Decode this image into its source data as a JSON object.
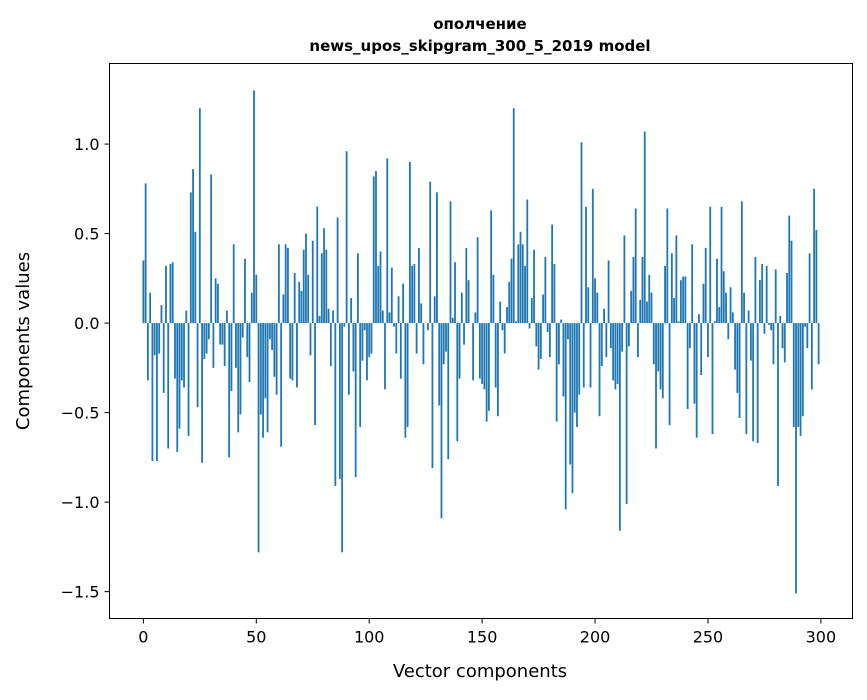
{
  "chart_data": {
    "type": "bar",
    "title": "ополчение",
    "subtitle": "news_upos_skipgram_300_5_2019 model",
    "xlabel": "Vector components",
    "ylabel": "Components values",
    "xlim": [
      -15,
      314
    ],
    "ylim": [
      -1.65,
      1.45
    ],
    "xticks": [
      0,
      50,
      100,
      150,
      200,
      250,
      300
    ],
    "xtick_labels": [
      "0",
      "50",
      "100",
      "150",
      "200",
      "250",
      "300"
    ],
    "yticks": [
      -1.5,
      -1.0,
      -0.5,
      0.0,
      0.5,
      1.0
    ],
    "ytick_labels": [
      "−1.5",
      "−1.0",
      "−0.5",
      "0.0",
      "0.5",
      "1.0"
    ],
    "grid": false,
    "color": "#1f77b4",
    "values": [
      0.35,
      0.78,
      -0.32,
      0.17,
      -0.77,
      -0.18,
      -0.77,
      -0.17,
      0.1,
      -0.39,
      0.32,
      -0.7,
      0.33,
      0.34,
      -0.31,
      -0.72,
      -0.59,
      -0.32,
      -0.36,
      0.07,
      -0.63,
      0.73,
      0.86,
      0.51,
      -0.47,
      1.2,
      -0.78,
      -0.2,
      -0.17,
      -0.09,
      0.83,
      -0.25,
      0.25,
      0.22,
      -0.12,
      -0.12,
      -0.24,
      0.07,
      -0.75,
      -0.38,
      0.44,
      -0.25,
      -0.61,
      -0.51,
      -0.08,
      0.36,
      -0.19,
      -0.33,
      0.17,
      1.3,
      0.27,
      -1.28,
      -0.51,
      -0.64,
      -0.42,
      -0.61,
      -0.09,
      -0.15,
      -0.3,
      -0.4,
      0.44,
      -0.69,
      0.16,
      0.44,
      0.42,
      -0.31,
      -0.32,
      0.28,
      -0.36,
      0.23,
      0.18,
      0.41,
      0.5,
      0.27,
      -0.18,
      0.46,
      -0.57,
      0.65,
      0.04,
      0.39,
      0.53,
      0.41,
      0.08,
      -0.24,
      0.07,
      -0.91,
      0.59,
      -0.87,
      -1.28,
      -0.02,
      0.96,
      -0.4,
      0.14,
      -0.27,
      -0.86,
      0.39,
      -0.58,
      -0.21,
      -0.04,
      -0.32,
      -0.19,
      -0.17,
      0.82,
      0.85,
      0.32,
      0.4,
      0.07,
      -0.37,
      0.92,
      0.06,
      0.31,
      -0.02,
      -0.17,
      0.15,
      -0.31,
      0.22,
      -0.64,
      -0.58,
      0.9,
      0.32,
      0.33,
      -0.17,
      0.42,
      0.11,
      -0.23,
      0.0,
      -0.04,
      0.79,
      -0.81,
      0.15,
      0.73,
      -0.46,
      -1.09,
      -0.23,
      -0.16,
      -0.76,
      0.68,
      0.03,
      0.34,
      -0.66,
      -0.31,
      0.17,
      -0.12,
      0.42,
      0.24,
      0.0,
      -0.32,
      0.06,
      0.48,
      -0.31,
      -0.34,
      -0.37,
      -0.55,
      -0.49,
      0.63,
      0.27,
      -0.36,
      -0.52,
      0.12,
      -0.04,
      -0.17,
      0.09,
      0.23,
      0.36,
      1.2,
      0.01,
      0.44,
      0.51,
      0.44,
      0.32,
      0.69,
      -0.03,
      0.14,
      0.41,
      -0.13,
      -0.26,
      -0.2,
      0.16,
      0.37,
      -0.05,
      -0.19,
      0.55,
      0.33,
      -0.55,
      -0.23,
      0.02,
      -0.41,
      -1.04,
      -0.09,
      -0.79,
      -0.95,
      -0.5,
      -0.58,
      -0.4,
      1.01,
      -0.36,
      0.65,
      0.2,
      -0.36,
      0.75,
      0.25,
      0.17,
      -0.52,
      -0.24,
      0.08,
      -0.19,
      0.35,
      -0.14,
      -0.32,
      -0.37,
      -0.34,
      -1.16,
      -0.16,
      0.49,
      -1.01,
      -0.13,
      0.18,
      0.37,
      0.64,
      -0.19,
      0.13,
      0.37,
      1.07,
      0.12,
      0.27,
      0.17,
      -0.23,
      -0.7,
      -0.27,
      -0.37,
      -0.42,
      0.32,
      0.64,
      -0.57,
      0.39,
      0.14,
      0.49,
      0.01,
      0.24,
      0.26,
      0.26,
      -0.48,
      -0.14,
      0.44,
      -0.45,
      -0.64,
      0.05,
      -0.29,
      0.22,
      0.42,
      -0.19,
      0.65,
      -0.62,
      0.01,
      0.36,
      0.09,
      0.65,
      0.29,
      0.17,
      -0.09,
      0.2,
      0.06,
      -0.26,
      -0.39,
      -0.53,
      0.68,
      0.17,
      -0.62,
      0.07,
      -0.21,
      -0.66,
      0.37,
      -0.67,
      0.24,
      0.33,
      -0.06,
      0.32,
      -0.01,
      -0.04,
      -0.23,
      0.3,
      -0.91,
      0.04,
      -0.14,
      -0.22,
      0.28,
      0.6,
      0.46,
      -0.58,
      -1.51,
      -0.58,
      -0.63,
      -0.52,
      -0.02,
      -0.14,
      0.39,
      -0.37,
      0.75,
      0.52,
      -0.23
    ]
  }
}
